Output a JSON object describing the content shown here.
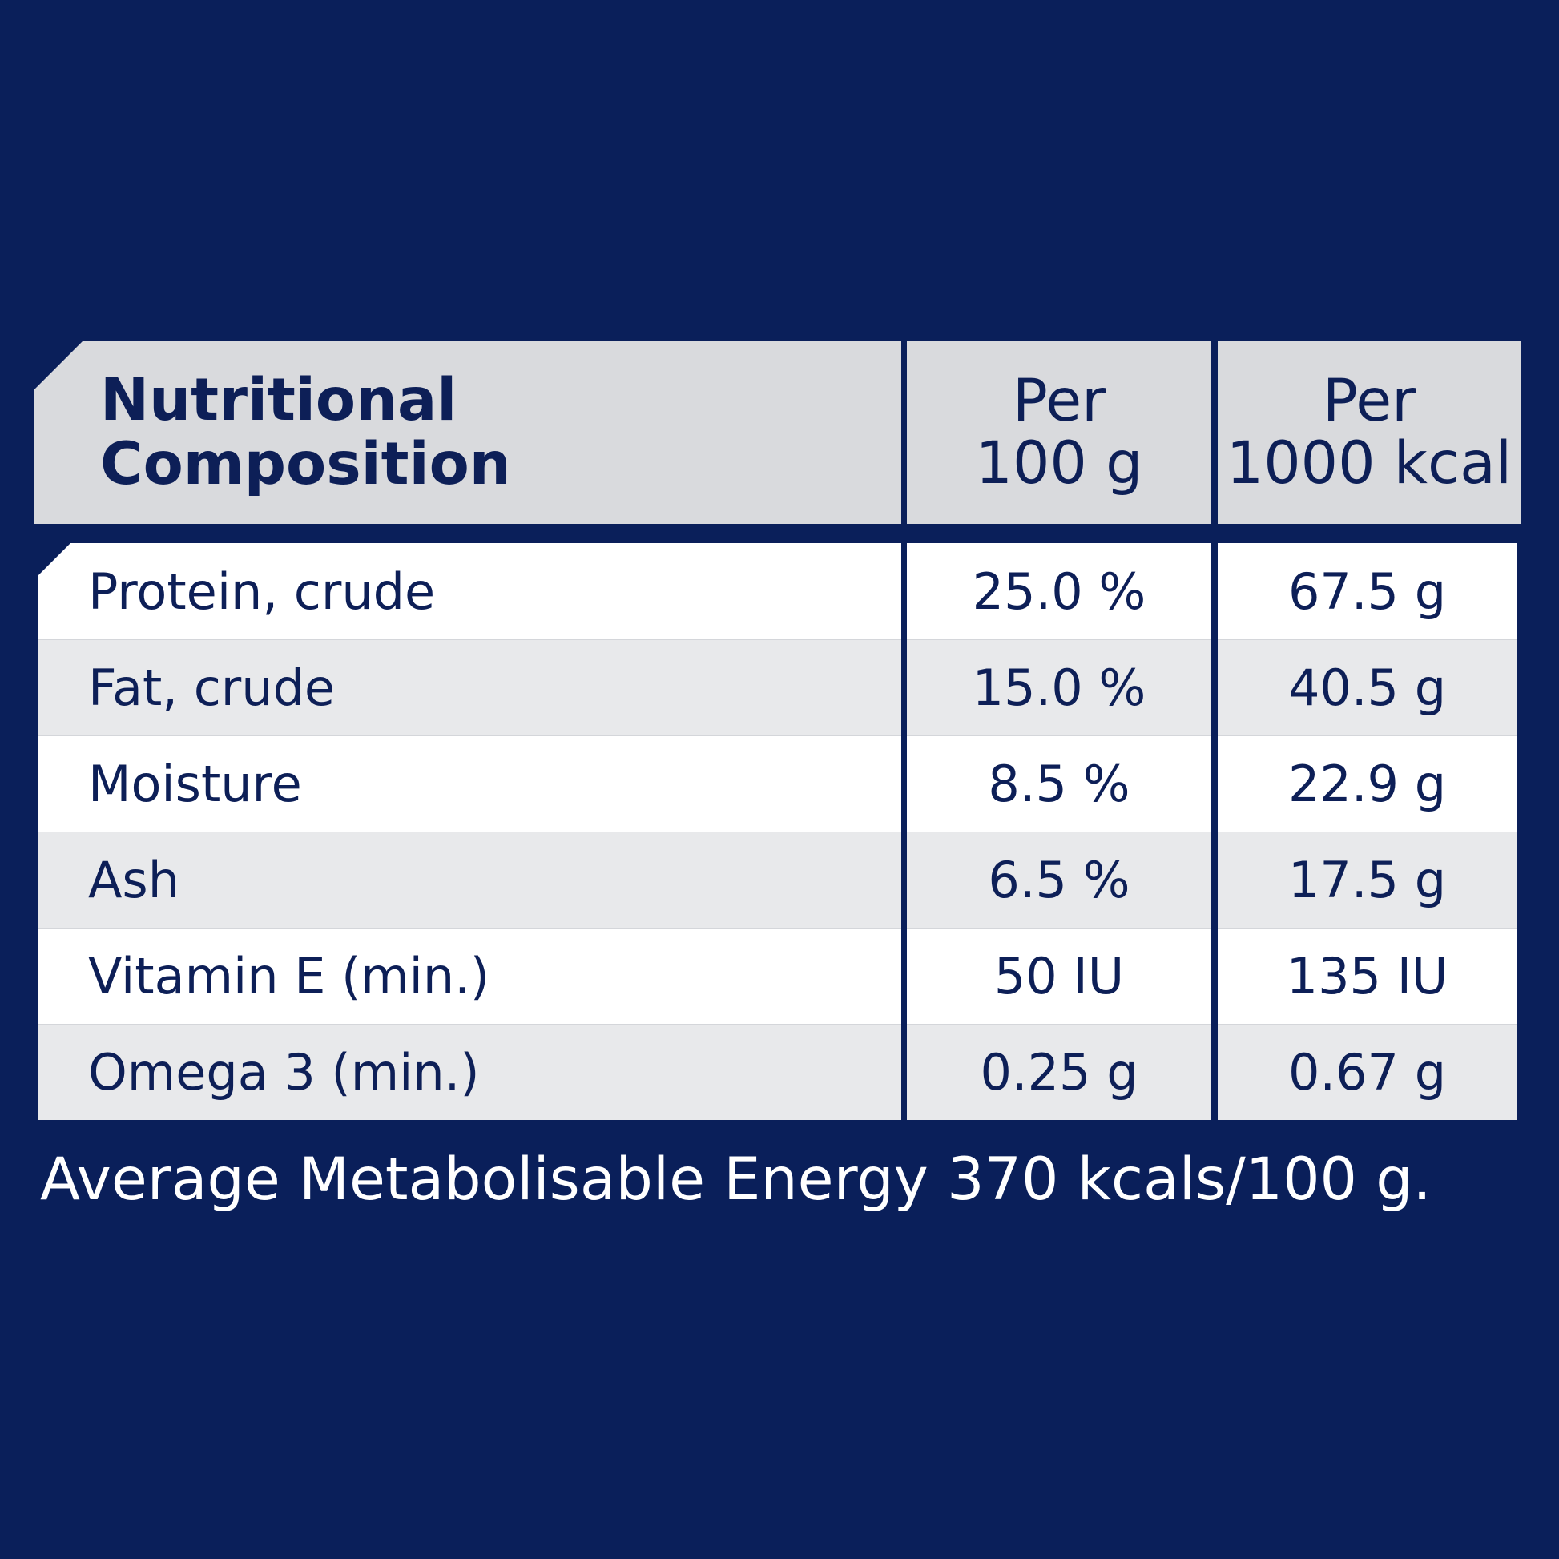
{
  "header": {
    "col1_line1": "Nutritional",
    "col1_line2": "Composition",
    "col2_line1": "Per",
    "col2_line2": "100 g",
    "col3_line1": "Per",
    "col3_line2": "1000 kcal"
  },
  "rows": [
    {
      "name": "Protein, crude",
      "per100g": "25.0 %",
      "per1000kcal": "67.5 g"
    },
    {
      "name": "Fat, crude",
      "per100g": "15.0 %",
      "per1000kcal": "40.5 g"
    },
    {
      "name": "Moisture",
      "per100g": "8.5 %",
      "per1000kcal": "22.9 g"
    },
    {
      "name": "Ash",
      "per100g": "6.5 %",
      "per1000kcal": "17.5 g"
    },
    {
      "name": "Vitamin E (min.)",
      "per100g": "50 IU",
      "per1000kcal": "135 IU"
    },
    {
      "name": "Omega 3 (min.)",
      "per100g": "0.25 g",
      "per1000kcal": "0.67 g"
    }
  ],
  "footer": "Average Metabolisable Energy 370 kcals/100 g.",
  "colors": {
    "background": "#0a1f5a",
    "header_fill": "#d9dadd",
    "row_white": "#ffffff",
    "row_gray": "#e8e9eb",
    "text_dark": "#0d1f57",
    "text_light": "#ffffff"
  }
}
